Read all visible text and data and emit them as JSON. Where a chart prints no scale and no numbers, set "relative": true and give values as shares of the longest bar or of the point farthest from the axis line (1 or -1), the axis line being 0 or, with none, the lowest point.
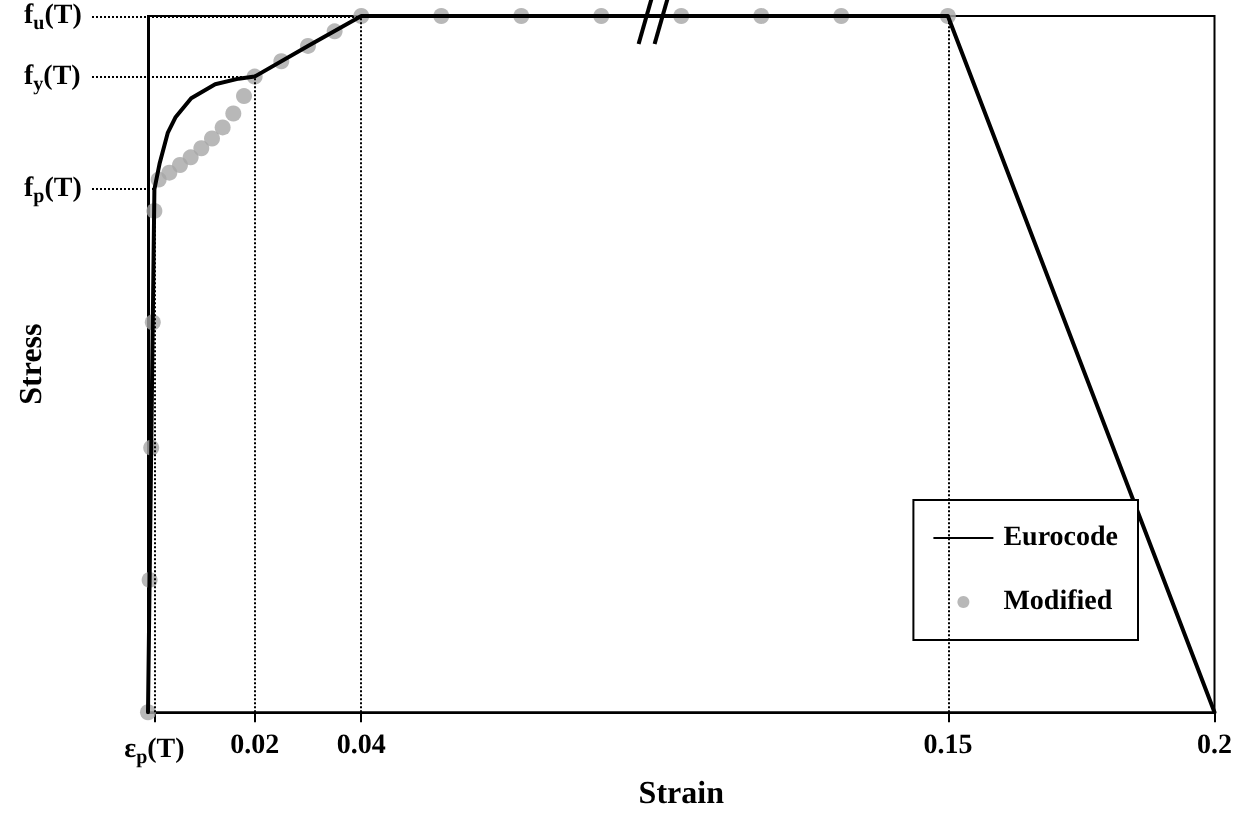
{
  "chart_data": {
    "type": "line",
    "relative": true,
    "xlabel": "Strain",
    "ylabel": "Stress",
    "xlim": [
      0,
      0.2
    ],
    "xticks": [
      {
        "value": 0.0012,
        "label": "ε$_{p}$(T)"
      },
      0.02,
      0.04,
      0.15,
      0.2
    ],
    "series": [
      {
        "name": "Eurocode",
        "color": "#000000",
        "type": "line",
        "marker": "none",
        "line_style": "solid",
        "x": [
          0,
          0.0012,
          0.0022,
          0.0037,
          0.0052,
          0.0081,
          0.0126,
          0.017,
          0.02,
          0.03,
          0.04,
          0.15,
          0.2
        ],
        "values": [
          0,
          0.751,
          0.789,
          0.832,
          0.855,
          0.882,
          0.902,
          0.91,
          0.913,
          0.957,
          1,
          1,
          0
        ]
      },
      {
        "name": "Modified",
        "color": "#a6a6a6",
        "type": "scatter",
        "marker": "circle",
        "x": [
          0,
          0.0003,
          0.0006,
          0.0009,
          0.0012,
          0.002,
          0.004,
          0.006,
          0.008,
          0.01,
          0.012,
          0.014,
          0.016,
          0.018,
          0.02,
          0.025,
          0.03,
          0.035,
          0.04,
          0.055,
          0.07,
          0.085,
          0.1,
          0.115,
          0.13,
          0.15
        ],
        "values": [
          0,
          0.19,
          0.38,
          0.56,
          0.72,
          0.765,
          0.775,
          0.786,
          0.797,
          0.81,
          0.824,
          0.84,
          0.86,
          0.885,
          0.913,
          0.935,
          0.957,
          0.978,
          1,
          1,
          1,
          1,
          1,
          1,
          1,
          1
        ]
      }
    ],
    "ref_lines": [
      {
        "axis": "y",
        "value": 1,
        "label": "f$_{u}$(T)",
        "line_style": "dotted",
        "color": "#000000"
      },
      {
        "axis": "y",
        "value": 0.913,
        "label": "f$_{y}$(T)",
        "line_style": "dotted",
        "color": "#000000"
      },
      {
        "axis": "y",
        "value": 0.751,
        "label": "f$_{p}$(T)",
        "line_style": "dotted",
        "color": "#000000"
      },
      {
        "axis": "x",
        "value": 0.0012,
        "line_style": "dotted",
        "color": "#000000"
      },
      {
        "axis": "x",
        "value": 0.02,
        "line_style": "dotted",
        "color": "#000000"
      },
      {
        "axis": "x",
        "value": 0.04,
        "line_style": "dotted",
        "color": "#000000"
      },
      {
        "axis": "x",
        "value": 0.15,
        "line_style": "dotted",
        "color": "#000000"
      }
    ],
    "grid": false,
    "legend": "bottom right"
  }
}
